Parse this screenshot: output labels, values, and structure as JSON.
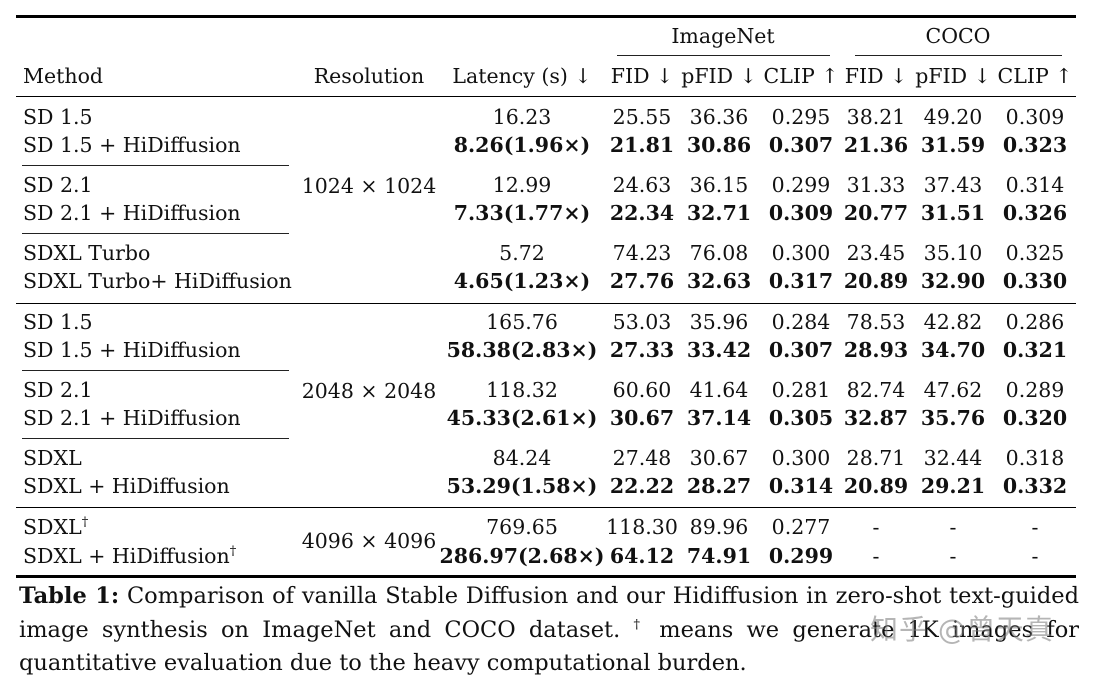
{
  "table": {
    "header": {
      "method": "Method",
      "resolution": "Resolution",
      "latency": "Latency (s) ↓",
      "group_imagenet": "ImageNet",
      "group_coco": "COCO",
      "fid": "FID ↓",
      "pfid": "pFID ↓",
      "clip": "CLIP ↑"
    },
    "resolutions": [
      "1024 × 1024",
      "2048 × 2048",
      "4096 × 4096"
    ],
    "rows": [
      {
        "method": "SD 1.5",
        "latency": "16.23",
        "in_fid": "25.55",
        "in_pfid": "36.36",
        "in_clip": "0.295",
        "co_fid": "38.21",
        "co_pfid": "49.20",
        "co_clip": "0.309"
      },
      {
        "method": "SD 1.5 + HiDiffusion",
        "latency": "8.26(1.96×)",
        "in_fid": "21.81",
        "in_pfid": "30.86",
        "in_clip": "0.307",
        "co_fid": "21.36",
        "co_pfid": "31.59",
        "co_clip": "0.323"
      },
      {
        "method": "SD 2.1",
        "latency": "12.99",
        "in_fid": "24.63",
        "in_pfid": "36.15",
        "in_clip": "0.299",
        "co_fid": "31.33",
        "co_pfid": "37.43",
        "co_clip": "0.314"
      },
      {
        "method": "SD 2.1 + HiDiffusion",
        "latency": "7.33(1.77×)",
        "in_fid": "22.34",
        "in_pfid": "32.71",
        "in_clip": "0.309",
        "co_fid": "20.77",
        "co_pfid": "31.51",
        "co_clip": "0.326"
      },
      {
        "method": "SDXL Turbo",
        "latency": "5.72",
        "in_fid": "74.23",
        "in_pfid": "76.08",
        "in_clip": "0.300",
        "co_fid": "23.45",
        "co_pfid": "35.10",
        "co_clip": "0.325"
      },
      {
        "method": "SDXL Turbo+ HiDiffusion",
        "latency": "4.65(1.23×)",
        "in_fid": "27.76",
        "in_pfid": "32.63",
        "in_clip": "0.317",
        "co_fid": "20.89",
        "co_pfid": "32.90",
        "co_clip": "0.330"
      },
      {
        "method": "SD 1.5",
        "latency": "165.76",
        "in_fid": "53.03",
        "in_pfid": "35.96",
        "in_clip": "0.284",
        "co_fid": "78.53",
        "co_pfid": "42.82",
        "co_clip": "0.286"
      },
      {
        "method": "SD 1.5 + HiDiffusion",
        "latency": "58.38(2.83×)",
        "in_fid": "27.33",
        "in_pfid": "33.42",
        "in_clip": "0.307",
        "co_fid": "28.93",
        "co_pfid": "34.70",
        "co_clip": "0.321"
      },
      {
        "method": "SD 2.1",
        "latency": "118.32",
        "in_fid": "60.60",
        "in_pfid": "41.64",
        "in_clip": "0.281",
        "co_fid": "82.74",
        "co_pfid": "47.62",
        "co_clip": "0.289"
      },
      {
        "method": "SD 2.1 + HiDiffusion",
        "latency": "45.33(2.61×)",
        "in_fid": "30.67",
        "in_pfid": "37.14",
        "in_clip": "0.305",
        "co_fid": "32.87",
        "co_pfid": "35.76",
        "co_clip": "0.320"
      },
      {
        "method": "SDXL",
        "latency": "84.24",
        "in_fid": "27.48",
        "in_pfid": "30.67",
        "in_clip": "0.300",
        "co_fid": "28.71",
        "co_pfid": "32.44",
        "co_clip": "0.318"
      },
      {
        "method": "SDXL + HiDiffusion",
        "latency": "53.29(1.58×)",
        "in_fid": "22.22",
        "in_pfid": "28.27",
        "in_clip": "0.314",
        "co_fid": "20.89",
        "co_pfid": "29.21",
        "co_clip": "0.332"
      },
      {
        "method": "SDXL",
        "latency": "769.65",
        "in_fid": "118.30",
        "in_pfid": "89.96",
        "in_clip": "0.277",
        "co_fid": "-",
        "co_pfid": "-",
        "co_clip": "-"
      },
      {
        "method": "SDXL + HiDiffusion",
        "latency": "286.97(2.68×)",
        "in_fid": "64.12",
        "in_pfid": "74.91",
        "in_clip": "0.299",
        "co_fid": "-",
        "co_pfid": "-",
        "co_clip": "-"
      }
    ],
    "dagger": "†"
  },
  "caption": {
    "label": "Table 1:",
    "text_a": " Comparison of vanilla Stable Diffusion and our Hidiffusion in zero-shot text-guided image synthesis on ImageNet and COCO dataset. ",
    "dagger": "†",
    "text_b": " means we generate 1K images for quantitative evaluation due to the heavy computational burden."
  },
  "watermark": "知乎 @曾天真"
}
